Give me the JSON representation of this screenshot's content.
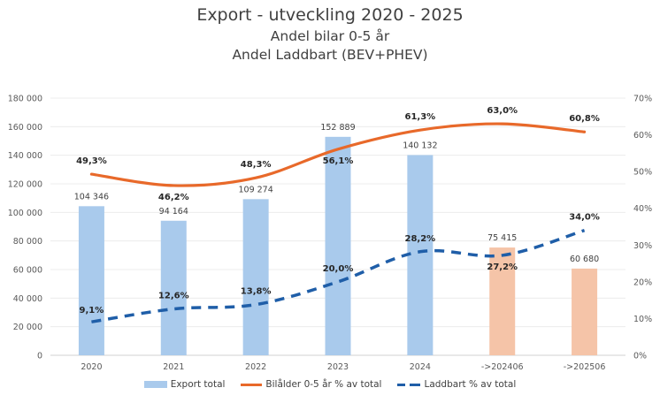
{
  "chart_data": {
    "type": "bar",
    "title": "Export - utveckling 2020 - 2025",
    "subtitle": [
      "Andel bilar 0-5 år",
      "Andel Laddbart (BEV+PHEV)"
    ],
    "categories": [
      "2020",
      "2021",
      "2022",
      "2023",
      "2024",
      "->202406",
      "->202506"
    ],
    "xlabel": "",
    "ylabel": "",
    "ylim": [
      0,
      180000
    ],
    "y2lim": [
      0,
      70
    ],
    "yticks": [
      0,
      20000,
      40000,
      60000,
      80000,
      100000,
      120000,
      140000,
      160000,
      180000
    ],
    "ytick_labels": [
      "0",
      "20 000",
      "40 000",
      "60 000",
      "80 000",
      "100 000",
      "120 000",
      "140 000",
      "160 000",
      "180 000"
    ],
    "y2ticks": [
      0,
      10,
      20,
      30,
      40,
      50,
      60,
      70
    ],
    "y2tick_labels": [
      "0%",
      "10%",
      "20%",
      "30%",
      "40%",
      "50%",
      "60%",
      "70%"
    ],
    "grid": true,
    "legend_position": "bottom",
    "series": [
      {
        "name": "Export total",
        "type": "bar",
        "axis": "left",
        "values": [
          104346,
          94164,
          109274,
          152889,
          140132,
          75415,
          60680
        ],
        "labels": [
          "104 346",
          "94 164",
          "109 274",
          "152 889",
          "140 132",
          "75 415",
          "60 680"
        ],
        "colors": [
          "#a9caec",
          "#a9caec",
          "#a9caec",
          "#a9caec",
          "#a9caec",
          "#f5c4a8",
          "#f5c4a8"
        ]
      },
      {
        "name": "Bilålder 0-5 år % av total",
        "type": "line",
        "style": "solid",
        "axis": "right",
        "color": "#e8692a",
        "values": [
          49.3,
          46.2,
          48.3,
          56.1,
          61.3,
          63.0,
          60.8
        ],
        "labels": [
          "49,3%",
          "46,2%",
          "48,3%",
          "56,1%",
          "61,3%",
          "63,0%",
          "60,8%"
        ]
      },
      {
        "name": "Laddbart % av total",
        "type": "line",
        "style": "dashed",
        "axis": "right",
        "color": "#1f5ea8",
        "values": [
          9.1,
          12.6,
          13.8,
          20.0,
          28.2,
          27.2,
          34.0
        ],
        "labels": [
          "9,1%",
          "12,6%",
          "13,8%",
          "20,0%",
          "28,2%",
          "27,2%",
          "34,0%"
        ]
      }
    ]
  }
}
